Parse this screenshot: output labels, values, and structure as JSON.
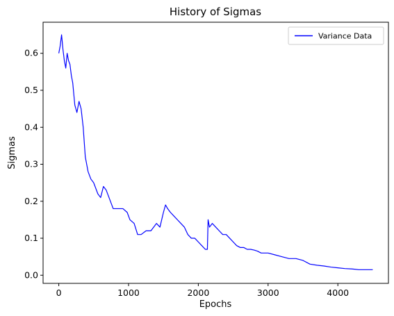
{
  "chart_data": {
    "type": "line",
    "title": "History of Sigmas",
    "xlabel": "Epochs",
    "ylabel": "Sigmas",
    "xlim": [
      -225,
      4725
    ],
    "ylim": [
      -0.022,
      0.684
    ],
    "xticks": [
      0,
      1000,
      2000,
      3000,
      4000
    ],
    "xtick_labels": [
      "0",
      "1000",
      "2000",
      "3000",
      "4000"
    ],
    "yticks": [
      0.0,
      0.1,
      0.2,
      0.3,
      0.4,
      0.5,
      0.6
    ],
    "ytick_labels": [
      "0.0",
      "0.1",
      "0.2",
      "0.3",
      "0.4",
      "0.5",
      "0.6"
    ],
    "grid": false,
    "legend": "top-right",
    "series": [
      {
        "name": "Variance Data",
        "color": "#0000ff",
        "x": [
          0,
          20,
          40,
          60,
          80,
          100,
          120,
          140,
          160,
          180,
          200,
          230,
          260,
          290,
          320,
          350,
          380,
          420,
          460,
          500,
          560,
          600,
          640,
          680,
          720,
          780,
          850,
          920,
          980,
          1020,
          1080,
          1130,
          1180,
          1250,
          1320,
          1400,
          1450,
          1500,
          1530,
          1560,
          1600,
          1650,
          1700,
          1750,
          1800,
          1850,
          1900,
          1950,
          2000,
          2050,
          2100,
          2130,
          2140,
          2160,
          2200,
          2250,
          2300,
          2350,
          2400,
          2450,
          2500,
          2550,
          2600,
          2650,
          2700,
          2750,
          2800,
          2850,
          2900,
          2950,
          3000,
          3100,
          3200,
          3300,
          3400,
          3500,
          3600,
          3700,
          3800,
          3900,
          4000,
          4100,
          4200,
          4300,
          4400,
          4500
        ],
        "y": [
          0.6,
          0.62,
          0.65,
          0.61,
          0.58,
          0.56,
          0.6,
          0.58,
          0.57,
          0.54,
          0.52,
          0.46,
          0.44,
          0.47,
          0.45,
          0.4,
          0.32,
          0.28,
          0.26,
          0.25,
          0.22,
          0.21,
          0.24,
          0.23,
          0.21,
          0.18,
          0.18,
          0.18,
          0.17,
          0.15,
          0.14,
          0.11,
          0.11,
          0.12,
          0.12,
          0.14,
          0.13,
          0.17,
          0.19,
          0.18,
          0.17,
          0.16,
          0.15,
          0.14,
          0.13,
          0.11,
          0.1,
          0.1,
          0.09,
          0.08,
          0.07,
          0.07,
          0.15,
          0.13,
          0.14,
          0.13,
          0.12,
          0.11,
          0.11,
          0.1,
          0.09,
          0.08,
          0.075,
          0.075,
          0.07,
          0.07,
          0.068,
          0.065,
          0.06,
          0.06,
          0.06,
          0.055,
          0.05,
          0.045,
          0.045,
          0.04,
          0.03,
          0.027,
          0.025,
          0.022,
          0.02,
          0.018,
          0.017,
          0.015,
          0.015,
          0.015
        ]
      }
    ]
  }
}
